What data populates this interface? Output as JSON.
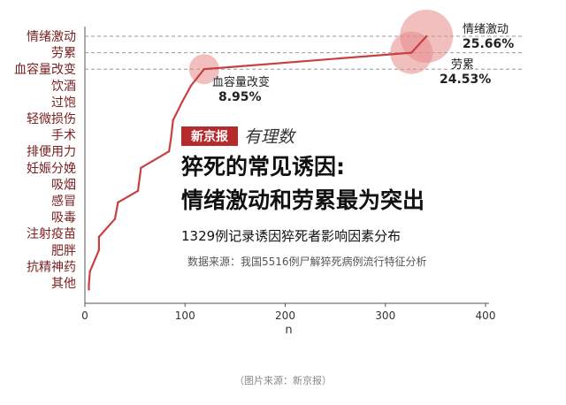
{
  "chart_data": {
    "type": "line",
    "categories": [
      "情绪激动",
      "劳累",
      "血容量改变",
      "饮酒",
      "过饱",
      "轻微损伤",
      "手术",
      "排便用力",
      "妊娠分娩",
      "吸烟",
      "感冒",
      "吸毒",
      "注射疫苗",
      "肥胖",
      "抗精神药",
      "其他"
    ],
    "points": [
      {
        "n": 4,
        "y": 15.4
      },
      {
        "n": 4,
        "y": 15.1
      },
      {
        "n": 5,
        "y": 14.3
      },
      {
        "n": 14,
        "y": 13.0
      },
      {
        "n": 14,
        "y": 12.2
      },
      {
        "n": 30,
        "y": 11.1
      },
      {
        "n": 33,
        "y": 10.1
      },
      {
        "n": 53,
        "y": 9.4
      },
      {
        "n": 56,
        "y": 8.0
      },
      {
        "n": 84,
        "y": 7.0
      },
      {
        "n": 86,
        "y": 6.2
      },
      {
        "n": 88,
        "y": 5.1
      },
      {
        "n": 97,
        "y": 4.0
      },
      {
        "n": 106,
        "y": 3.0
      },
      {
        "n": 119,
        "y": 2.0
      },
      {
        "n": 326,
        "y": 1.0
      },
      {
        "n": 341,
        "y": 0.0
      }
    ],
    "xticks": [
      0,
      100,
      200,
      300,
      400
    ],
    "xlim": [
      0,
      400
    ],
    "xlabel": "n",
    "grid": false,
    "line_color": "#c84040",
    "bubble_color": "#e88a8a",
    "annotations": [
      {
        "name": "情绪激动",
        "pct": "25.66%",
        "n": 341,
        "cat_index": 0
      },
      {
        "name": "劳累",
        "pct": "24.53%",
        "n": 326,
        "cat_index": 1
      },
      {
        "name": "血容量改变",
        "pct": "8.95%",
        "n": 119,
        "cat_index": 2
      }
    ],
    "brand": {
      "box": "新京报",
      "script": "有理数"
    },
    "headline": [
      "猝死的常见诱因:",
      "情绪激动和劳累最为突出"
    ],
    "subtitle": "1329例记录诱因猝死者影响因素分布",
    "source": "数据来源：我国5516例尸解猝死病例流行特征分析"
  },
  "footer": {
    "credit": "（图片来源：新京报）"
  }
}
